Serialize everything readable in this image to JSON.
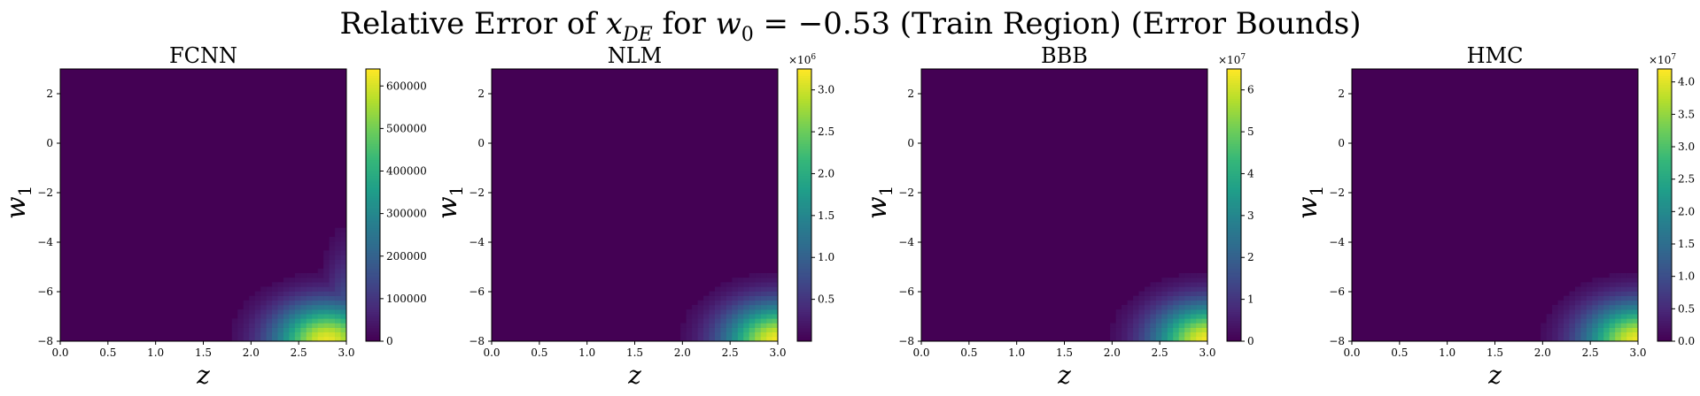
{
  "figure": {
    "title_parts": [
      "Relative Error of ",
      "x",
      "DE",
      " for ",
      "w",
      "0",
      " = −0.53 (Train Region) (Error Bounds)"
    ]
  },
  "chart_data": [
    {
      "type": "heatmap",
      "title": "FCNN",
      "xlabel": "z",
      "ylabel_base": "w",
      "ylabel_sub": "1",
      "xlim": [
        0.0,
        3.0
      ],
      "ylim": [
        -8,
        3
      ],
      "x_ticks": [
        "0.0",
        "0.5",
        "1.0",
        "1.5",
        "2.0",
        "2.5",
        "3.0"
      ],
      "y_ticks": [
        "2",
        "0",
        "−2",
        "−4",
        "−6",
        "−8"
      ],
      "colorbar": {
        "vmin": 0,
        "vmax": 640000,
        "ticks": [
          0,
          100000,
          200000,
          300000,
          400000,
          500000,
          600000
        ],
        "tick_labels": [
          "0",
          "100000",
          "200000",
          "300000",
          "400000",
          "500000",
          "600000"
        ],
        "multiplier": ""
      },
      "peak": {
        "x": 2.8,
        "y": -8,
        "value": 620000
      },
      "colormap": "viridis"
    },
    {
      "type": "heatmap",
      "title": "NLM",
      "xlabel": "z",
      "ylabel_base": "w",
      "ylabel_sub": "1",
      "xlim": [
        0.0,
        3.0
      ],
      "ylim": [
        -8,
        3
      ],
      "x_ticks": [
        "0.0",
        "0.5",
        "1.0",
        "1.5",
        "2.0",
        "2.5",
        "3.0"
      ],
      "y_ticks": [
        "2",
        "0",
        "−2",
        "−4",
        "−6",
        "−8"
      ],
      "colorbar": {
        "vmin": 0,
        "vmax": 3.25,
        "ticks": [
          0.5,
          1.0,
          1.5,
          2.0,
          2.5,
          3.0
        ],
        "tick_labels": [
          "0.5",
          "1.0",
          "1.5",
          "2.0",
          "2.5",
          "3.0"
        ],
        "multiplier": "×10",
        "multiplier_exp": "6"
      },
      "peak": {
        "x": 3.0,
        "y": -8,
        "value": 3.2
      },
      "colormap": "viridis"
    },
    {
      "type": "heatmap",
      "title": "BBB",
      "xlabel": "z",
      "ylabel_base": "w",
      "ylabel_sub": "1",
      "xlim": [
        0.0,
        3.0
      ],
      "ylim": [
        -8,
        3
      ],
      "x_ticks": [
        "0.0",
        "0.5",
        "1.0",
        "1.5",
        "2.0",
        "2.5",
        "3.0"
      ],
      "y_ticks": [
        "2",
        "0",
        "−2",
        "−4",
        "−6",
        "−8"
      ],
      "colorbar": {
        "vmin": 0,
        "vmax": 6.5,
        "ticks": [
          0,
          1,
          2,
          3,
          4,
          5,
          6
        ],
        "tick_labels": [
          "0",
          "1",
          "2",
          "3",
          "4",
          "5",
          "6"
        ],
        "multiplier": "×10",
        "multiplier_exp": "7"
      },
      "peak": {
        "x": 3.0,
        "y": -8,
        "value": 6.4
      },
      "colormap": "viridis"
    },
    {
      "type": "heatmap",
      "title": "HMC",
      "xlabel": "z",
      "ylabel_base": "w",
      "ylabel_sub": "1",
      "xlim": [
        0.0,
        3.0
      ],
      "ylim": [
        -8,
        3
      ],
      "x_ticks": [
        "0.0",
        "0.5",
        "1.0",
        "1.5",
        "2.0",
        "2.5",
        "3.0"
      ],
      "y_ticks": [
        "2",
        "0",
        "−2",
        "−4",
        "−6",
        "−8"
      ],
      "colorbar": {
        "vmin": 0,
        "vmax": 4.2,
        "ticks": [
          0.0,
          0.5,
          1.0,
          1.5,
          2.0,
          2.5,
          3.0,
          3.5,
          4.0
        ],
        "tick_labels": [
          "0.0",
          "0.5",
          "1.0",
          "1.5",
          "2.0",
          "2.5",
          "3.0",
          "3.5",
          "4.0"
        ],
        "multiplier": "×10",
        "multiplier_exp": "7"
      },
      "peak": {
        "x": 3.0,
        "y": -8,
        "value": 4.1
      },
      "colormap": "viridis"
    }
  ]
}
